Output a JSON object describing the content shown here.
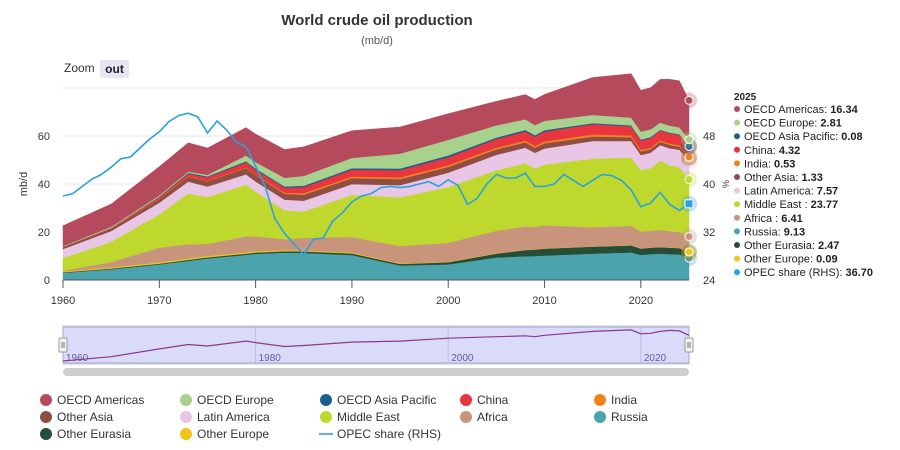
{
  "header": {
    "title": "World crude oil production",
    "subtitle": "(mb/d)"
  },
  "zoom": {
    "label": "Zoom",
    "out_label": "out"
  },
  "tooltip": {
    "year": "2025",
    "rows": [
      {
        "name": "OECD Americas",
        "value": "16.34"
      },
      {
        "name": "OECD Europe",
        "value": "2.81"
      },
      {
        "name": "OECD Asia Pacific",
        "value": "0.08"
      },
      {
        "name": "China",
        "value": "4.32"
      },
      {
        "name": "India",
        "value": "0.53"
      },
      {
        "name": "Other Asia",
        "value": "1.33"
      },
      {
        "name": "Latin America",
        "value": "7.57"
      },
      {
        "name": "Middle East ",
        "value": "23.77"
      },
      {
        "name": "Africa ",
        "value": "6.41"
      },
      {
        "name": "Russia",
        "value": "9.13"
      },
      {
        "name": "Other Eurasia",
        "value": "2.47"
      },
      {
        "name": "Other Europe",
        "value": "0.09"
      },
      {
        "name": "OPEC share (RHS)",
        "value": "36.70"
      }
    ]
  },
  "navigator": {
    "ticks": [
      "1960",
      "1980",
      "2000",
      "2020"
    ]
  },
  "chart_data": {
    "type": "area",
    "stacked": true,
    "title": "World crude oil production",
    "subtitle": "(mb/d)",
    "ylabel": "mb/d",
    "y2label": "%",
    "ylim": [
      0,
      80
    ],
    "y2lim": [
      24,
      56
    ],
    "xlim": [
      1960,
      2025
    ],
    "xticks": [
      "1960",
      "1970",
      "1980",
      "1990",
      "2000",
      "2010",
      "2020"
    ],
    "yticks": [
      "0",
      "20",
      "40",
      "60"
    ],
    "y2ticks": [
      "24",
      "32",
      "40",
      "48"
    ],
    "legend_position": "bottom",
    "grid": true,
    "x": [
      1960,
      1965,
      1970,
      1973,
      1975,
      1979,
      1980,
      1983,
      1985,
      1990,
      1995,
      2000,
      2005,
      2008,
      2009,
      2010,
      2015,
      2019,
      2020,
      2021,
      2022,
      2023,
      2024,
      2025
    ],
    "series": [
      {
        "name": "Russia",
        "color": "#4aa3ad",
        "values": [
          3,
          4.5,
          6.5,
          8.0,
          9.0,
          10.5,
          10.9,
          11.4,
          11.3,
          10.4,
          6.1,
          6.5,
          9.4,
          9.9,
          10.0,
          10.2,
          11.0,
          11.5,
          10.5,
          10.8,
          11.0,
          10.8,
          10.7,
          9.13
        ]
      },
      {
        "name": "Other Eurasia",
        "color": "#264d36",
        "values": [
          0.2,
          0.3,
          0.35,
          0.4,
          0.45,
          0.5,
          0.55,
          0.6,
          0.6,
          0.7,
          0.6,
          0.9,
          1.6,
          2.6,
          2.7,
          2.9,
          2.9,
          2.9,
          2.6,
          2.7,
          2.7,
          2.7,
          2.6,
          2.47
        ]
      },
      {
        "name": "Other Europe",
        "color": "#f0c419",
        "values": [
          0.4,
          0.5,
          0.55,
          0.6,
          0.6,
          0.55,
          0.5,
          0.5,
          0.45,
          0.35,
          0.25,
          0.2,
          0.15,
          0.12,
          0.12,
          0.11,
          0.1,
          0.1,
          0.09,
          0.09,
          0.09,
          0.09,
          0.09,
          0.09
        ]
      },
      {
        "name": "Africa ",
        "color": "#c8957c",
        "values": [
          0.3,
          2.2,
          6.1,
          5.9,
          5.0,
          6.6,
          6.2,
          4.5,
          5.2,
          6.5,
          7.2,
          7.9,
          9.4,
          9.7,
          9.3,
          9.6,
          8.0,
          8.1,
          7.0,
          7.0,
          7.1,
          6.8,
          6.6,
          6.41
        ]
      },
      {
        "name": "Middle East ",
        "color": "#bfd82d",
        "values": [
          5.3,
          8.4,
          13.9,
          21.2,
          19.5,
          21.6,
          18.7,
          12.1,
          11.0,
          17.5,
          20.3,
          23.2,
          25.2,
          26.3,
          24.4,
          25.3,
          28.6,
          28.4,
          25.6,
          26.0,
          28.8,
          27.4,
          27.0,
          23.77
        ]
      },
      {
        "name": "Latin America",
        "color": "#e9c5e6",
        "values": [
          3.7,
          4.5,
          4.8,
          4.9,
          4.4,
          4.3,
          4.2,
          4.4,
          4.5,
          4.5,
          5.1,
          6.0,
          6.4,
          6.5,
          6.5,
          6.7,
          7.3,
          6.9,
          6.3,
          6.4,
          6.5,
          7.1,
          7.3,
          7.57
        ]
      },
      {
        "name": "Other Asia",
        "color": "#8e4e44",
        "values": [
          0.8,
          1.0,
          1.6,
          2.0,
          2.2,
          2.6,
          2.6,
          2.4,
          2.5,
          2.5,
          2.5,
          2.4,
          2.3,
          2.2,
          2.1,
          2.1,
          1.9,
          1.6,
          1.5,
          1.5,
          1.4,
          1.4,
          1.35,
          1.33
        ]
      },
      {
        "name": "India",
        "color": "#f0841b",
        "values": [
          0.01,
          0.06,
          0.14,
          0.15,
          0.17,
          0.24,
          0.2,
          0.48,
          0.64,
          0.69,
          0.74,
          0.72,
          0.7,
          0.77,
          0.77,
          0.84,
          0.85,
          0.75,
          0.65,
          0.63,
          0.6,
          0.58,
          0.56,
          0.53
        ]
      },
      {
        "name": "China",
        "color": "#e8353f",
        "values": [
          0.1,
          0.23,
          0.6,
          1.1,
          1.5,
          2.1,
          2.1,
          2.1,
          2.5,
          2.8,
          3.0,
          3.3,
          3.6,
          3.8,
          3.8,
          4.1,
          4.3,
          3.8,
          3.9,
          4.0,
          4.1,
          4.2,
          4.26,
          4.32
        ]
      },
      {
        "name": "OECD Asia Pacific",
        "color": "#1d5f8c",
        "values": [
          0.01,
          0.02,
          0.2,
          0.4,
          0.4,
          0.5,
          0.5,
          0.5,
          0.6,
          0.65,
          0.66,
          0.78,
          0.62,
          0.66,
          0.65,
          0.6,
          0.43,
          0.4,
          0.42,
          0.42,
          0.3,
          0.35,
          0.3,
          0.08
        ]
      },
      {
        "name": "OECD Europe",
        "color": "#a9d18e",
        "values": [
          0.3,
          0.45,
          0.5,
          0.5,
          0.6,
          2.4,
          2.7,
          3.6,
          4.1,
          4.3,
          6.2,
          6.5,
          5.1,
          4.4,
          4.2,
          3.9,
          3.4,
          3.2,
          3.3,
          3.2,
          3.0,
          2.9,
          2.85,
          2.81
        ]
      },
      {
        "name": "OECD Americas",
        "color": "#b54a5c",
        "values": [
          8.5,
          9.5,
          12.0,
          12.0,
          11.2,
          11.6,
          11.7,
          11.8,
          12.1,
          11.3,
          11.1,
          10.9,
          10.0,
          10.3,
          10.7,
          11.0,
          15.6,
          18.3,
          17.2,
          17.4,
          18.0,
          19.3,
          19.4,
          16.34
        ]
      }
    ],
    "line_series": {
      "name": "OPEC share (RHS)",
      "color": "#2aa1e0",
      "axis": "right",
      "x": [
        1960,
        1961,
        1962,
        1963,
        1964,
        1965,
        1966,
        1967,
        1968,
        1969,
        1970,
        1971,
        1972,
        1973,
        1974,
        1975,
        1976,
        1977,
        1978,
        1979,
        1980,
        1981,
        1982,
        1983,
        1984,
        1985,
        1986,
        1987,
        1988,
        1989,
        1990,
        1991,
        1992,
        1993,
        1994,
        1995,
        1996,
        1997,
        1998,
        1999,
        2000,
        2001,
        2002,
        2003,
        2004,
        2005,
        2006,
        2007,
        2008,
        2009,
        2010,
        2011,
        2012,
        2013,
        2014,
        2015,
        2016,
        2017,
        2018,
        2019,
        2020,
        2021,
        2022,
        2023,
        2024,
        2025
      ],
      "values": [
        38.0,
        38.4,
        39.6,
        40.8,
        41.6,
        42.8,
        44.2,
        44.5,
        46.0,
        47.5,
        48.7,
        50.4,
        51.4,
        51.8,
        51.2,
        48.5,
        50.5,
        49.0,
        47.0,
        46.2,
        43.0,
        39.6,
        34.2,
        31.8,
        30.0,
        28.2,
        30.8,
        31.0,
        33.8,
        35.2,
        37.0,
        38.0,
        38.4,
        39.4,
        39.6,
        39.4,
        39.6,
        40.0,
        40.4,
        39.6,
        40.7,
        39.8,
        36.6,
        37.6,
        40.0,
        41.6,
        41.0,
        41.0,
        41.8,
        39.6,
        39.6,
        40.0,
        41.6,
        40.6,
        39.6,
        40.6,
        41.6,
        41.4,
        40.6,
        39.0,
        36.2,
        36.8,
        38.6,
        36.6,
        35.6,
        36.7
      ]
    },
    "navigator_series": {
      "x": [
        1960,
        1965,
        1970,
        1973,
        1975,
        1979,
        1980,
        1983,
        1985,
        1990,
        1995,
        2000,
        2005,
        2008,
        2009,
        2010,
        2015,
        2019,
        2020,
        2021,
        2022,
        2023,
        2024,
        2025
      ],
      "values": [
        22,
        31,
        47,
        56,
        53,
        63,
        60,
        52,
        54,
        61,
        63,
        69,
        72,
        74,
        72,
        75,
        83,
        86,
        78,
        79,
        83,
        85,
        84,
        75
      ]
    }
  },
  "legend": {
    "items": [
      {
        "name": "OECD Americas",
        "color": "#b54a5c",
        "kind": "dot"
      },
      {
        "name": "OECD Europe",
        "color": "#a9d18e",
        "kind": "dot"
      },
      {
        "name": "OECD Asia Pacific",
        "color": "#1d5f8c",
        "kind": "dot"
      },
      {
        "name": "China",
        "color": "#e8353f",
        "kind": "dot"
      },
      {
        "name": "India",
        "color": "#f0841b",
        "kind": "dot"
      },
      {
        "name": "Other Asia",
        "color": "#8e4e44",
        "kind": "dot"
      },
      {
        "name": "Latin America",
        "color": "#e9c5e6",
        "kind": "dot"
      },
      {
        "name": "Middle East",
        "color": "#bfd82d",
        "kind": "dot"
      },
      {
        "name": "Africa",
        "color": "#c8957c",
        "kind": "dot"
      },
      {
        "name": "Russia",
        "color": "#4aa3ad",
        "kind": "dot"
      },
      {
        "name": "Other Eurasia",
        "color": "#264d36",
        "kind": "dot"
      },
      {
        "name": "Other Europe",
        "color": "#f0c419",
        "kind": "dot"
      },
      {
        "name": "OPEC share (RHS)",
        "color": "#2aa1e0",
        "kind": "line"
      }
    ]
  }
}
